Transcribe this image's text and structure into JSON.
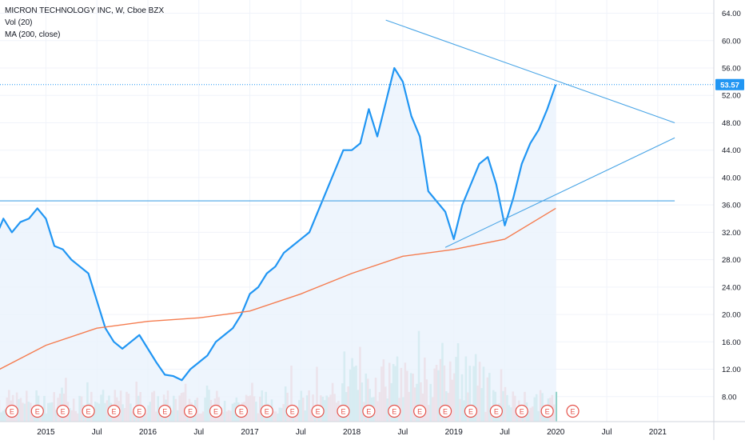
{
  "legend": {
    "title": "MICRON TECHNOLOGY INC, W, Cboe BZX",
    "vol": "Vol (20)",
    "ma": "MA (200, close)"
  },
  "colors": {
    "price": "#2196f3",
    "area": "#eaf3fd",
    "ma": "#f57c4f",
    "vol_up": "#8ed0c6",
    "vol_down": "#f4a6a6",
    "trend": "#4aa5e6",
    "earnings": "#e5534b",
    "grid": "#f0f3fa",
    "axis_text": "#131722",
    "price_label_bg": "#2196f3"
  },
  "chart_data": {
    "type": "line",
    "title": "MICRON TECHNOLOGY INC, W, Cboe BZX",
    "x_ticks": [
      "Jul",
      "2015",
      "Jul",
      "2016",
      "Jul",
      "2017",
      "Jul",
      "2018",
      "Jul",
      "2019",
      "Jul",
      "2020",
      "Jul",
      "2021"
    ],
    "x_tick_dates": [
      "2014-07",
      "2015-01",
      "2015-07",
      "2016-01",
      "2016-07",
      "2017-01",
      "2017-07",
      "2018-01",
      "2018-07",
      "2019-01",
      "2019-07",
      "2020-01",
      "2020-07",
      "2021-01"
    ],
    "y_ticks": [
      "64.00",
      "60.00",
      "56.00",
      "52.00",
      "48.00",
      "44.00",
      "40.00",
      "36.00",
      "32.00",
      "28.00",
      "24.00",
      "20.00",
      "16.00",
      "12.00",
      "8.00"
    ],
    "ylim": [
      4,
      65
    ],
    "last_price": 53.57,
    "last_price_label": "53.57",
    "series": [
      {
        "type": "line",
        "x": [
          "2014-06",
          "2014-07",
          "2014-08",
          "2014-09",
          "2014-10",
          "2014-11",
          "2014-12",
          "2015-01",
          "2015-02",
          "2015-03",
          "2015-04",
          "2015-05",
          "2015-06",
          "2015-07",
          "2015-08",
          "2015-09",
          "2015-10",
          "2015-11",
          "2015-12",
          "2016-01",
          "2016-02",
          "2016-03",
          "2016-04",
          "2016-05",
          "2016-06",
          "2016-07",
          "2016-08",
          "2016-09",
          "2016-10",
          "2016-11",
          "2016-12",
          "2017-01",
          "2017-02",
          "2017-03",
          "2017-04",
          "2017-05",
          "2017-06",
          "2017-07",
          "2017-08",
          "2017-09",
          "2017-10",
          "2017-11",
          "2017-12",
          "2018-01",
          "2018-02",
          "2018-03",
          "2018-04",
          "2018-05",
          "2018-06",
          "2018-07",
          "2018-08",
          "2018-09",
          "2018-10",
          "2018-11",
          "2018-12",
          "2019-01",
          "2019-02",
          "2019-03",
          "2019-04",
          "2019-05",
          "2019-06",
          "2019-07",
          "2019-08",
          "2019-09",
          "2019-10",
          "2019-11",
          "2019-12",
          "2020-01"
        ],
        "values": [
          33,
          31,
          34,
          32,
          33.5,
          34,
          35.5,
          34,
          30,
          29.5,
          28,
          27,
          26,
          22,
          18,
          16,
          15,
          16,
          17,
          15,
          13,
          11.2,
          11,
          10.4,
          12,
          13,
          14,
          16,
          17,
          18,
          20,
          23,
          24,
          26,
          27,
          29,
          30,
          31,
          32,
          35,
          38,
          41,
          44,
          44,
          45,
          50,
          46,
          51,
          56,
          54,
          49,
          46,
          38,
          36.5,
          35,
          31,
          36,
          39,
          42,
          43,
          39,
          33,
          37,
          42,
          45,
          47,
          50,
          53.57
        ]
      },
      {
        "type": "line",
        "name": "MA",
        "x": [
          "2014-06",
          "2015-01",
          "2015-07",
          "2016-01",
          "2016-07",
          "2017-01",
          "2017-07",
          "2018-01",
          "2018-07",
          "2019-01",
          "2019-07",
          "2020-01"
        ],
        "values": [
          11,
          15.5,
          18,
          19,
          19.5,
          20.5,
          23,
          26,
          28.5,
          29.5,
          31,
          35.5
        ]
      }
    ],
    "volume_note": "weekly volume histogram",
    "earnings_markers": [
      "2014-06",
      "2014-09",
      "2014-12",
      "2015-03",
      "2015-06",
      "2015-09",
      "2015-12",
      "2016-03",
      "2016-06",
      "2016-09",
      "2016-12",
      "2017-03",
      "2017-06",
      "2017-09",
      "2017-12",
      "2018-03",
      "2018-06",
      "2018-09",
      "2018-12",
      "2019-03",
      "2019-06",
      "2019-09",
      "2019-12",
      "2020-03"
    ],
    "earnings_label": "E",
    "trendlines": [
      {
        "from": [
          "2018-05",
          63
        ],
        "to": [
          "2021-03",
          48
        ]
      },
      {
        "from": [
          "2018-12",
          29.8
        ],
        "to": [
          "2021-03",
          45.8
        ]
      },
      {
        "from": [
          "2014-06",
          36.6
        ],
        "to": [
          "2021-03",
          36.6
        ]
      }
    ],
    "grid": true,
    "legend_position": "top-left"
  }
}
